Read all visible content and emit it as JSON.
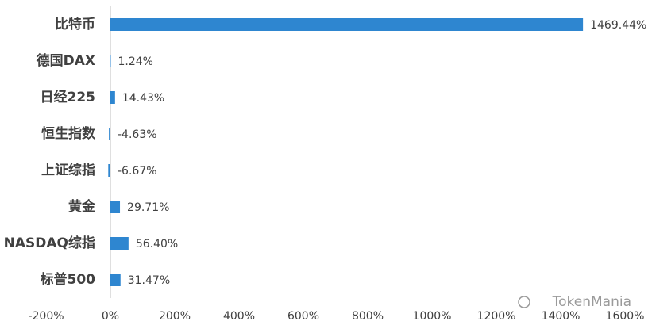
{
  "chart_data": {
    "type": "bar",
    "orientation": "horizontal",
    "color": "#2e86d0",
    "categories": [
      "比特币",
      "德国DAX",
      "日经225",
      "恒生指数",
      "上证综指",
      "黄金",
      "NASDAQ综指",
      "标普500"
    ],
    "values": [
      1469.44,
      1.24,
      14.43,
      -4.63,
      -6.67,
      29.71,
      56.4,
      31.47
    ],
    "value_labels": [
      "1469.44%",
      "1.24%",
      "14.43%",
      "-4.63%",
      "-6.67%",
      "29.71%",
      "56.40%",
      "31.47%"
    ],
    "xlim": [
      -200,
      1600
    ],
    "xticks": [
      {
        "value": -200,
        "label": "-200%"
      },
      {
        "value": 0,
        "label": "0%"
      },
      {
        "value": 200,
        "label": "200%"
      },
      {
        "value": 400,
        "label": "400%"
      },
      {
        "value": 600,
        "label": "600%"
      },
      {
        "value": 800,
        "label": "800%"
      },
      {
        "value": 1000,
        "label": "1000%"
      },
      {
        "value": 1200,
        "label": "1200%"
      },
      {
        "value": 1400,
        "label": "1400%"
      },
      {
        "value": 1600,
        "label": "1600%"
      }
    ],
    "grid": false,
    "watermark": "TokenMania"
  }
}
